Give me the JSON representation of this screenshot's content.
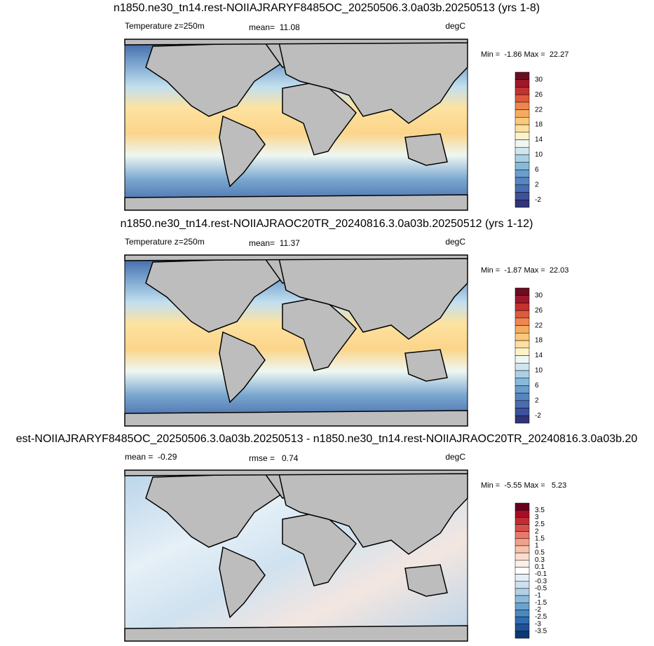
{
  "panels": [
    {
      "title": "n1850.ne30_tn14.rest-NOIIAJRARYF8485OC_20250506.3.0a03b.20250513 (yrs 1-8)",
      "left_label": "Temperature z=250m",
      "center_label": "mean=  11.08",
      "right_label": "degC",
      "min_max": "Min =  -1.86 Max =  22.27",
      "colorbar": {
        "labels": [
          "30",
          "26",
          "22",
          "18",
          "14",
          "10",
          "6",
          "2",
          "-2"
        ],
        "colors": [
          "#6b0d21",
          "#a0172a",
          "#c4312e",
          "#de5a3f",
          "#ee8650",
          "#f6ab60",
          "#fbc978",
          "#fde0a0",
          "#fef2c8",
          "#eef7f3",
          "#cfe6ef",
          "#a9d1e6",
          "#86b9da",
          "#6a9fcd",
          "#5785c0",
          "#4a6cb1",
          "#3d519c",
          "#2f3578"
        ]
      }
    },
    {
      "title": "n1850.ne30_tn14.rest-NOIIAJRAOC20TR_20240816.3.0a03b.20250512 (yrs 1-12)",
      "left_label": "Temperature z=250m",
      "center_label": "mean=  11.37",
      "right_label": "degC",
      "min_max": "Min =  -1.87 Max =  22.03",
      "colorbar": {
        "labels": [
          "30",
          "26",
          "22",
          "18",
          "14",
          "10",
          "6",
          "2",
          "-2"
        ],
        "colors": [
          "#6b0d21",
          "#a0172a",
          "#c4312e",
          "#de5a3f",
          "#ee8650",
          "#f6ab60",
          "#fbc978",
          "#fde0a0",
          "#fef2c8",
          "#eef7f3",
          "#cfe6ef",
          "#a9d1e6",
          "#86b9da",
          "#6a9fcd",
          "#5785c0",
          "#4a6cb1",
          "#3d519c",
          "#2f3578"
        ]
      }
    },
    {
      "title": "est-NOIIAJRARYF8485OC_20250506.3.0a03b.20250513 - n1850.ne30_tn14.rest-NOIIAJRAOC20TR_20240816.3.0a03b.20",
      "left_label": "mean =  -0.29",
      "center_label": "rmse =   0.74",
      "right_label": "degC",
      "min_max": "Min =  -5.55 Max =   5.23",
      "colorbar": {
        "labels": [
          "3.5",
          "3",
          "2.5",
          "2",
          "1.5",
          "1",
          "0.5",
          "0.3",
          "0.1",
          "-0.1",
          "-0.3",
          "-0.5",
          "-1",
          "-1.5",
          "-2",
          "-2.5",
          "-3",
          "-3.5"
        ],
        "colors": [
          "#67001f",
          "#a50f26",
          "#c42b33",
          "#d6504b",
          "#e87a6b",
          "#f3a08a",
          "#f8c2ad",
          "#fbdccf",
          "#fdeee6",
          "#ffffff",
          "#e4eef5",
          "#cce0ee",
          "#b0d0e6",
          "#8dbbdb",
          "#6aa3cf",
          "#4b88c0",
          "#326daf",
          "#1e5197",
          "#0c3774"
        ]
      }
    }
  ]
}
